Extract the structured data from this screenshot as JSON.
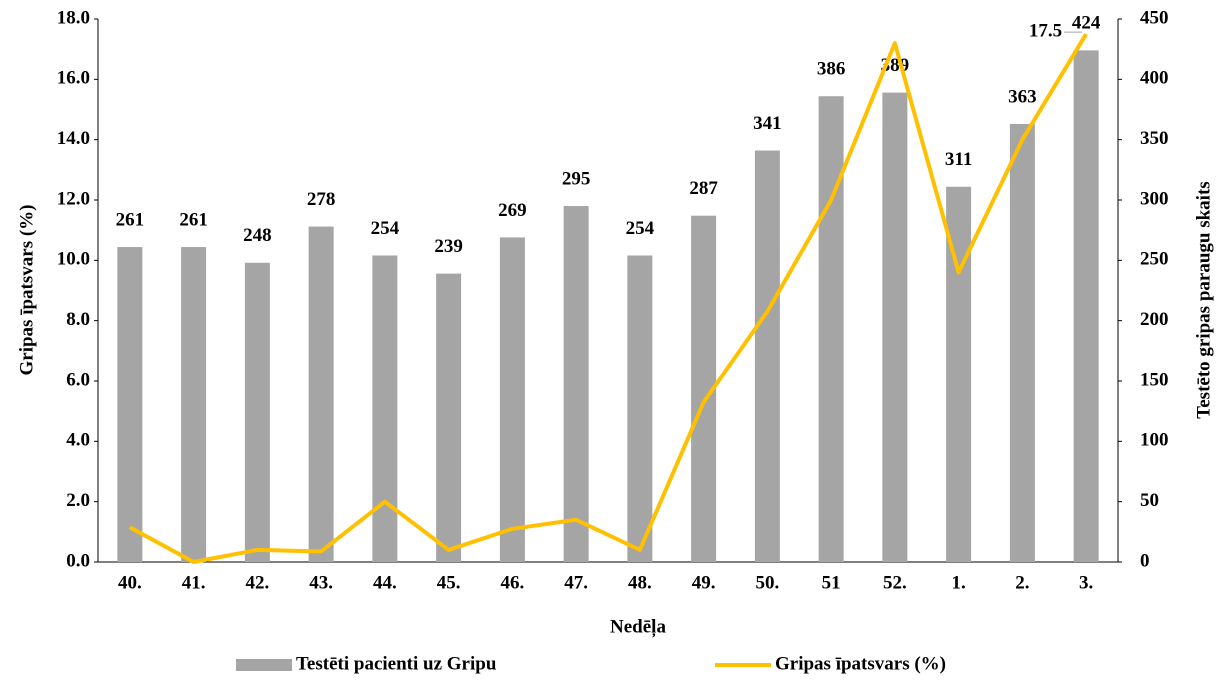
{
  "chart_data": {
    "type": "bar_line",
    "x_label": "Nedēļa",
    "y_label": "Gripas īpatsvars (%)",
    "y2_label": "Testēto gripas paraugu skaits",
    "categories": [
      "40.",
      "41.",
      "42.",
      "43.",
      "44.",
      "45.",
      "46.",
      "47.",
      "48.",
      "49.",
      "50.",
      "51",
      "52.",
      "1.",
      "2.",
      "3."
    ],
    "series": [
      {
        "name": "Testēti pacienti uz Gripu",
        "type": "bar",
        "axis": "y2",
        "color": "#a5a5a5",
        "values": [
          261,
          261,
          248,
          278,
          254,
          239,
          269,
          295,
          254,
          287,
          341,
          386,
          389,
          311,
          363,
          424
        ],
        "show_labels": true
      },
      {
        "name": "Gripas īpatsvars (%)",
        "type": "line",
        "axis": "y",
        "color": "#ffc000",
        "values": [
          1.15,
          0,
          0.4,
          0.35,
          2.0,
          0.4,
          1.1,
          1.4,
          0.4,
          5.3,
          8.3,
          12.0,
          17.2,
          9.6,
          14.0,
          17.5
        ],
        "label_last": true
      }
    ],
    "ylim": [
      0,
      18
    ],
    "yticks": [
      {
        "value": 0,
        "label": "0.0"
      },
      {
        "value": 2,
        "label": "2.0"
      },
      {
        "value": 4,
        "label": "4.0"
      },
      {
        "value": 6,
        "label": "6.0"
      },
      {
        "value": 8,
        "label": "8.0"
      },
      {
        "value": 10,
        "label": "10.0"
      },
      {
        "value": 12,
        "label": "12.0"
      },
      {
        "value": 14,
        "label": "14.0"
      },
      {
        "value": 16,
        "label": "16.0"
      },
      {
        "value": 18,
        "label": "18.0"
      }
    ],
    "y2lim": [
      0,
      450
    ],
    "y2ticks": [
      0,
      50,
      100,
      150,
      200,
      250,
      300,
      350,
      400,
      450
    ],
    "legend": "bottom"
  }
}
